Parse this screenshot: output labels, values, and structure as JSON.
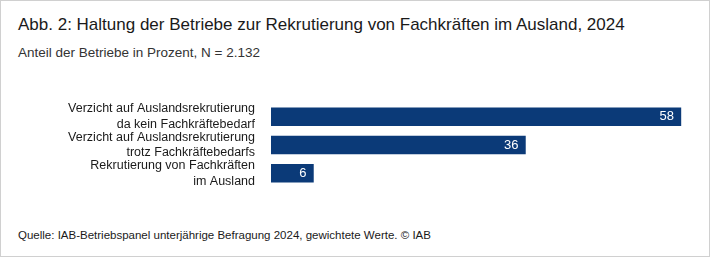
{
  "chart_data": {
    "type": "bar",
    "orientation": "horizontal",
    "title": "Abb. 2: Haltung der Betriebe zur Rekrutierung von Fachkräften im Ausland, 2024",
    "subtitle": "Anteil der Betriebe in Prozent, N = 2.132",
    "source": "Quelle: IAB-Betriebspanel unterjährige Befragung 2024, gewichtete Werte. © IAB",
    "categories": [
      "Verzicht auf Auslandsrekrutierung\nda kein Fachkräftebedarf",
      "Verzicht auf Auslandsrekrutierung\ntrotz Fachkräftebedarfs",
      "Rekrutierung von Fachkräften\nim Ausland"
    ],
    "values": [
      58,
      36,
      6
    ],
    "color": "#0b3a78",
    "xlim": [
      0,
      60
    ],
    "grid": false,
    "data_labels": true,
    "tick_labels": "y"
  }
}
